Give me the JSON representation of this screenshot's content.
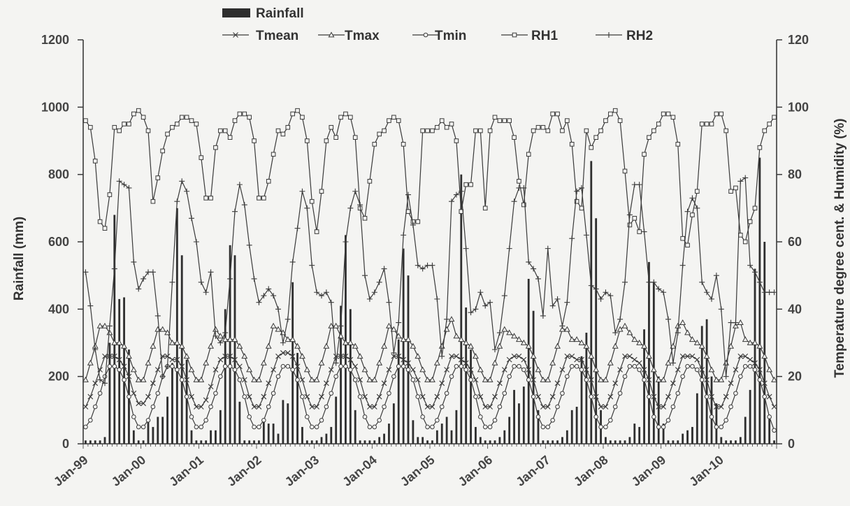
{
  "chart_data": {
    "type": "line",
    "xlabels": [
      "Jan-99",
      "Jan-00",
      "Jan-01",
      "Jan-02",
      "Jan-03",
      "Jan-04",
      "Jan-05",
      "Jan-06",
      "Jan-07",
      "Jan-08",
      "Jan-09",
      "Jan-10"
    ],
    "months": 144,
    "left_axis": {
      "label": "Rainfall  (mm)",
      "min": 0,
      "max": 1200,
      "ticks": [
        0,
        200,
        400,
        600,
        800,
        1000,
        1200
      ]
    },
    "right_axis": {
      "label": "Temperature degree cent. & Humidity (%)",
      "min": 0,
      "max": 120,
      "ticks": [
        0,
        20,
        40,
        60,
        80,
        100,
        120
      ]
    },
    "legend": [
      "Rainfall",
      "Tmean",
      "Tmax",
      "Tmin",
      "RH1",
      "RH2"
    ],
    "rainfall": [
      10,
      10,
      10,
      10,
      20,
      300,
      680,
      430,
      435,
      280,
      40,
      10,
      10,
      75,
      50,
      80,
      80,
      140,
      240,
      700,
      560,
      250,
      40,
      10,
      10,
      10,
      40,
      40,
      100,
      400,
      590,
      560,
      125,
      10,
      10,
      10,
      10,
      70,
      60,
      60,
      30,
      130,
      120,
      480,
      270,
      50,
      10,
      10,
      10,
      20,
      30,
      50,
      140,
      410,
      620,
      400,
      100,
      10,
      10,
      10,
      10,
      20,
      30,
      60,
      120,
      310,
      580,
      500,
      70,
      20,
      20,
      10,
      10,
      40,
      60,
      80,
      40,
      100,
      800,
      405,
      280,
      50,
      20,
      10,
      10,
      10,
      20,
      40,
      80,
      160,
      120,
      170,
      490,
      395,
      100,
      10,
      10,
      10,
      10,
      20,
      40,
      100,
      110,
      260,
      330,
      840,
      670,
      100,
      20,
      10,
      10,
      10,
      10,
      20,
      60,
      50,
      340,
      540,
      480,
      200,
      60,
      10,
      10,
      10,
      30,
      40,
      50,
      150,
      350,
      370,
      200,
      120,
      20,
      10,
      10,
      10,
      20,
      80,
      160,
      520,
      850,
      600,
      80,
      10
    ],
    "series": [
      {
        "name": "Tmean",
        "values": [
          11,
          14,
          18,
          22,
          26,
          26,
          26,
          25,
          23,
          20,
          15,
          12,
          12,
          14,
          18,
          22,
          26,
          26,
          25,
          25,
          23,
          19,
          14,
          11,
          11,
          13,
          17,
          22,
          25,
          26,
          26,
          25,
          23,
          19,
          14,
          11,
          11,
          14,
          18,
          22,
          26,
          27,
          27,
          26,
          23,
          19,
          14,
          11,
          11,
          14,
          18,
          22,
          26,
          26,
          26,
          25,
          23,
          19,
          14,
          11,
          11,
          14,
          18,
          22,
          26,
          26,
          25,
          24,
          22,
          19,
          14,
          11,
          11,
          14,
          18,
          22,
          26,
          26,
          25,
          24,
          22,
          19,
          14,
          11,
          11,
          14,
          18,
          22,
          25,
          26,
          26,
          25,
          22,
          19,
          14,
          11,
          11,
          14,
          18,
          22,
          26,
          26,
          25,
          25,
          22,
          19,
          14,
          11,
          11,
          14,
          18,
          22,
          26,
          26,
          25,
          24,
          22,
          19,
          14,
          11,
          11,
          14,
          18,
          22,
          26,
          26,
          26,
          25,
          22,
          19,
          14,
          11,
          11,
          14,
          18,
          22,
          26,
          26,
          25,
          24,
          22,
          18,
          14,
          11
        ]
      },
      {
        "name": "Tmax",
        "values": [
          19,
          24,
          29,
          35,
          35,
          33,
          30,
          30,
          29,
          26,
          22,
          19,
          19,
          24,
          29,
          34,
          34,
          33,
          30,
          30,
          29,
          26,
          22,
          19,
          19,
          24,
          29,
          34,
          32,
          31,
          31,
          31,
          29,
          26,
          22,
          19,
          19,
          24,
          29,
          35,
          34,
          33,
          31,
          31,
          29,
          26,
          22,
          19,
          19,
          24,
          29,
          35,
          35,
          32,
          30,
          30,
          29,
          26,
          22,
          19,
          19,
          24,
          29,
          35,
          34,
          32,
          31,
          31,
          29,
          26,
          22,
          19,
          19,
          24,
          29,
          34,
          37,
          32,
          31,
          30,
          29,
          26,
          22,
          19,
          19,
          24,
          29,
          34,
          33,
          32,
          31,
          30,
          29,
          26,
          22,
          19,
          19,
          24,
          29,
          34,
          34,
          31,
          31,
          30,
          29,
          26,
          22,
          19,
          19,
          24,
          29,
          34,
          35,
          33,
          31,
          30,
          29,
          26,
          22,
          19,
          19,
          24,
          29,
          35,
          36,
          33,
          31,
          30,
          29,
          26,
          22,
          19,
          19,
          24,
          29,
          35,
          36,
          31,
          30,
          30,
          29,
          26,
          22,
          19
        ]
      },
      {
        "name": "Tmin",
        "values": [
          5,
          7,
          11,
          15,
          20,
          23,
          23,
          22,
          19,
          14,
          8,
          5,
          5,
          7,
          11,
          15,
          20,
          23,
          23,
          22,
          19,
          14,
          8,
          5,
          5,
          7,
          11,
          15,
          20,
          23,
          23,
          22,
          19,
          14,
          8,
          5,
          5,
          7,
          11,
          15,
          20,
          23,
          23,
          22,
          19,
          14,
          8,
          5,
          5,
          7,
          11,
          15,
          20,
          23,
          23,
          22,
          19,
          14,
          8,
          5,
          5,
          7,
          11,
          15,
          20,
          23,
          23,
          22,
          19,
          14,
          8,
          5,
          5,
          7,
          11,
          15,
          20,
          23,
          23,
          22,
          19,
          14,
          8,
          5,
          5,
          7,
          11,
          15,
          20,
          23,
          23,
          22,
          19,
          14,
          8,
          5,
          5,
          7,
          11,
          15,
          20,
          23,
          23,
          22,
          19,
          14,
          8,
          5,
          5,
          7,
          11,
          15,
          20,
          23,
          23,
          22,
          19,
          14,
          8,
          5,
          5,
          7,
          11,
          15,
          20,
          23,
          23,
          22,
          19,
          14,
          8,
          5,
          5,
          7,
          11,
          15,
          20,
          23,
          23,
          22,
          19,
          14,
          8,
          4
        ]
      },
      {
        "name": "RH1",
        "values": [
          96,
          94,
          84,
          66,
          64,
          74,
          94,
          93,
          95,
          95,
          98,
          99,
          97,
          93,
          72,
          79,
          87,
          92,
          94,
          95,
          97,
          97,
          96,
          95,
          85,
          73,
          73,
          88,
          93,
          93,
          91,
          96,
          98,
          98,
          97,
          90,
          73,
          73,
          78,
          86,
          93,
          92,
          94,
          98,
          99,
          97,
          90,
          72,
          63,
          75,
          90,
          94,
          91,
          97,
          98,
          97,
          91,
          70,
          67,
          78,
          89,
          92,
          93,
          96,
          97,
          96,
          89,
          69,
          66,
          66,
          93,
          93,
          93,
          94,
          96,
          94,
          95,
          90,
          69,
          77,
          77,
          93,
          93,
          70,
          93,
          97,
          96,
          96,
          96,
          91,
          78,
          71,
          86,
          93,
          94,
          94,
          93,
          98,
          98,
          93,
          96,
          89,
          72,
          70,
          93,
          88,
          91,
          93,
          96,
          98,
          99,
          96,
          81,
          65,
          67,
          63,
          86,
          91,
          93,
          95,
          98,
          98,
          97,
          89,
          61,
          59,
          68,
          75,
          95,
          95,
          95,
          98,
          98,
          93,
          75,
          76,
          62,
          60,
          66,
          70,
          88,
          93,
          95,
          97
        ]
      },
      {
        "name": "RH2",
        "values": [
          51,
          41,
          28,
          19,
          18,
          35,
          52,
          78,
          77,
          76,
          54,
          46,
          49,
          51,
          51,
          38,
          20,
          23,
          48,
          72,
          78,
          75,
          67,
          60,
          48,
          45,
          51,
          32,
          30,
          33,
          49,
          69,
          77,
          71,
          59,
          49,
          42,
          44,
          46,
          44,
          40,
          30,
          37,
          54,
          64,
          75,
          70,
          53,
          45,
          44,
          45,
          42,
          24,
          35,
          60,
          70,
          75,
          71,
          50,
          43,
          45,
          48,
          52,
          42,
          27,
          36,
          62,
          74,
          65,
          53,
          52,
          53,
          53,
          43,
          26,
          37,
          72,
          74,
          75,
          58,
          39,
          40,
          45,
          41,
          42,
          28,
          33,
          44,
          58,
          72,
          76,
          76,
          54,
          52,
          49,
          38,
          58,
          41,
          43,
          35,
          42,
          61,
          75,
          76,
          62,
          47,
          46,
          43,
          45,
          44,
          33,
          37,
          48,
          68,
          77,
          77,
          63,
          48,
          48,
          46,
          45,
          37,
          24,
          33,
          53,
          69,
          73,
          70,
          48,
          45,
          43,
          50,
          40,
          20,
          36,
          36,
          78,
          79,
          53,
          51,
          48,
          45,
          45,
          45
        ]
      }
    ]
  }
}
